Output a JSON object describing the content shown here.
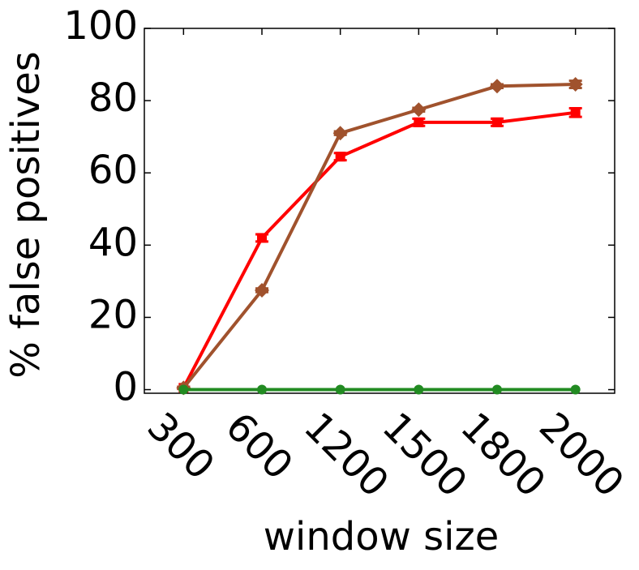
{
  "chart_data": {
    "type": "line",
    "x_label": "window size",
    "y_label": "% false positives",
    "categories": [
      "300",
      "600",
      "1200",
      "1500",
      "1800",
      "2000"
    ],
    "series": [
      {
        "color": "#ff0000",
        "marker": "square",
        "values": [
          0.5,
          42,
          64.5,
          74,
          74,
          76.7
        ],
        "errors": [
          0.3,
          1,
          1,
          1,
          1,
          1.2
        ]
      },
      {
        "color": "#a0522d",
        "marker": "diamond",
        "values": [
          0.5,
          27.5,
          71,
          77.5,
          84,
          84.5
        ],
        "errors": [
          0.3,
          0.5,
          0.5,
          0.5,
          0.5,
          1
        ]
      },
      {
        "color": "#228b22",
        "marker": "circle",
        "values": [
          0,
          0,
          0,
          0,
          0,
          0
        ]
      }
    ],
    "ylim": [
      -1,
      100
    ],
    "yticks": [
      0,
      20,
      40,
      60,
      80,
      100
    ]
  }
}
